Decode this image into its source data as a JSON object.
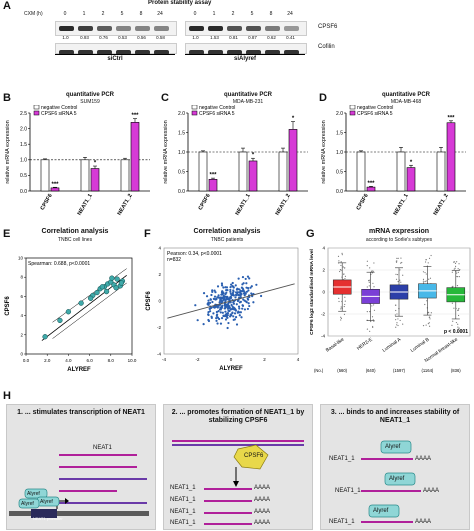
{
  "panelA": {
    "title": "Protein stability assay",
    "chx_label": "CXM (h)",
    "timepoints": [
      "0",
      "1",
      "2",
      "5",
      "8",
      "24",
      "0",
      "1",
      "2",
      "5",
      "8",
      "24"
    ],
    "ratios": [
      "1.0",
      "0.93",
      "0.76",
      "0.53",
      "0.56",
      "0.58",
      "1.0",
      "1.53",
      "0.81",
      "0.87",
      "0.62",
      "0.41"
    ],
    "row1_label": "CPSF6",
    "row2_label": "Cofilin",
    "group1": "siCtrl",
    "group2": "siAlyref"
  },
  "pcr_panels": [
    {
      "letter": "B",
      "title": "quantitative PCR",
      "subtitle": "SUM159"
    },
    {
      "letter": "C",
      "title": "quantitative PCR",
      "subtitle": "MDA-MB-231"
    },
    {
      "letter": "D",
      "title": "quantitative PCR",
      "subtitle": "MDA-MB-468"
    }
  ],
  "pcr_common": {
    "legend": [
      "negative Control",
      "CPSF6 siRNA 5"
    ],
    "ylabel": "relative mRNA expression",
    "yticks": [
      "0.0",
      "0.5",
      "1.0",
      "1.5",
      "2.0",
      "2.5"
    ],
    "categories": [
      "CPSF6",
      "NEAT1_1",
      "NEAT1_2"
    ],
    "colors": {
      "control": "#ffffff",
      "sirna": "#d63ad6"
    }
  },
  "chart_data": [
    {
      "type": "bar",
      "panel": "B",
      "title": "quantitative PCR",
      "subtitle": "SUM159",
      "categories": [
        "CPSF6",
        "NEAT1_1",
        "NEAT1_2"
      ],
      "ylabel": "relative mRNA expression",
      "ylim": [
        0,
        2.5
      ],
      "series": [
        {
          "name": "negative Control",
          "values": [
            1.0,
            1.0,
            1.0
          ],
          "errors": [
            0.03,
            0.08,
            0.05
          ]
        },
        {
          "name": "CPSF6 siRNA 5",
          "values": [
            0.1,
            0.72,
            2.2
          ],
          "errors": [
            0.02,
            0.08,
            0.12
          ]
        }
      ],
      "significance": [
        "***",
        "*",
        "***"
      ]
    },
    {
      "type": "bar",
      "panel": "C",
      "title": "quantitative PCR",
      "subtitle": "MDA-MB-231",
      "categories": [
        "CPSF6",
        "NEAT1_1",
        "NEAT1_2"
      ],
      "ylabel": "relative mRNA expression",
      "ylim": [
        0,
        2.0
      ],
      "series": [
        {
          "name": "negative Control",
          "values": [
            1.0,
            1.0,
            1.0
          ],
          "errors": [
            0.03,
            0.1,
            0.1
          ]
        },
        {
          "name": "CPSF6 siRNA 5",
          "values": [
            0.3,
            0.77,
            1.58
          ],
          "errors": [
            0.03,
            0.07,
            0.2
          ]
        }
      ],
      "significance": [
        "***",
        "*",
        "*"
      ]
    },
    {
      "type": "bar",
      "panel": "D",
      "title": "quantitative PCR",
      "subtitle": "MDA-MB-468",
      "categories": [
        "CPSF6",
        "NEAT1_1",
        "NEAT1_2"
      ],
      "ylabel": "relative mRNA expression",
      "ylim": [
        0,
        2.0
      ],
      "series": [
        {
          "name": "negative Control",
          "values": [
            1.0,
            1.0,
            1.0
          ],
          "errors": [
            0.03,
            0.12,
            0.12
          ]
        },
        {
          "name": "CPSF6 siRNA 5",
          "values": [
            0.1,
            0.6,
            1.75
          ],
          "errors": [
            0.02,
            0.06,
            0.05
          ]
        }
      ],
      "significance": [
        "***",
        "*",
        "***"
      ]
    },
    {
      "type": "scatter",
      "panel": "E",
      "title": "Correlation analysis",
      "subtitle": "TNBC cell lines",
      "xlabel": "ALYREF",
      "ylabel": "CPSF6",
      "xlim": [
        0,
        10
      ],
      "ylim": [
        0,
        10
      ],
      "x": [
        1.8,
        3.2,
        4.0,
        5.2,
        6.3,
        6.7,
        7.0,
        7.4,
        7.7,
        8.0,
        8.3,
        8.6,
        8.9,
        9.1,
        6.1,
        7.2,
        7.6,
        8.1,
        8.5,
        9.0
      ],
      "y": [
        1.8,
        3.5,
        4.4,
        5.3,
        6.1,
        6.4,
        6.8,
        7.0,
        7.3,
        7.5,
        7.2,
        7.8,
        7.1,
        7.6,
        5.8,
        7.0,
        6.5,
        7.9,
        6.9,
        7.4
      ],
      "annotation": "Spearman: 0.688, p<0.0001"
    },
    {
      "type": "scatter",
      "panel": "F",
      "title": "Correlation analysis",
      "subtitle": "TNBC patients",
      "xlabel": "ALYREF",
      "ylabel": "CPSF6",
      "xlim": [
        -4,
        4
      ],
      "ylim": [
        -4,
        4
      ],
      "annotation": [
        "Pearson: 0.34, p<0.0001",
        "n=832"
      ]
    },
    {
      "type": "box",
      "panel": "G",
      "title": "mRNA expression",
      "subtitle": "according to Sorlie's subtypes",
      "ylabel": "CPSF6 log2 standardised mRNA level",
      "ylim": [
        -4,
        4
      ],
      "categories": [
        "Basal-like",
        "HER2-E",
        "Luminal A",
        "Luminal B",
        "Normal breast-like"
      ],
      "counts": [
        "(No.)",
        "(560)",
        "(640)",
        "(1597)",
        "(1164)",
        "(836)"
      ],
      "medians": [
        0.45,
        -0.4,
        0.0,
        0.1,
        -0.25
      ],
      "colors": [
        "#e53030",
        "#7a3fd6",
        "#2c3fa8",
        "#48b8e8",
        "#26b83a"
      ],
      "annotation": "p < 0.0001"
    }
  ],
  "panelE": {
    "title": "Correlation analysis",
    "subtitle": "TNBC cell lines",
    "stat": "Spearman: 0.688, p<0.0001",
    "xlabel": "ALYREF",
    "ylabel": "CPSF6",
    "xticks": [
      "0.0",
      "2.0",
      "4.0",
      "6.0",
      "8.0",
      "10.0"
    ],
    "yticks": [
      "0",
      "2",
      "4",
      "6",
      "8",
      "10"
    ]
  },
  "panelF": {
    "title": "Correlation analysis",
    "subtitle": "TNBC patients",
    "stat": "Pearson: 0.34, p<0.0001",
    "n": "n=832",
    "xlabel": "ALYREF",
    "ylabel": "CPSF6",
    "xticks": [
      "-4",
      "-2",
      "0",
      "2",
      "4"
    ],
    "yticks": [
      "4",
      "2",
      "0",
      "-2",
      "-4"
    ]
  },
  "panelG": {
    "title": "mRNA expression",
    "subtitle": "according to Sorlie's subtypes",
    "ylabel": "CPSF6 log2 standardised mRNA level",
    "pval": "p < 0.0001",
    "yticks": [
      "4",
      "2",
      "0",
      "-2",
      "-4"
    ],
    "categories": [
      "Basal-like",
      "HER2-E",
      "Luminal A",
      "Luminal B",
      "Normal breast-like"
    ],
    "counts": [
      "(No.)",
      "(560)",
      "(640)",
      "(1597)",
      "(1164)",
      "(836)"
    ]
  },
  "panelH": {
    "boxes": [
      {
        "heading": "1. ... stimulates transcription of NEAT1",
        "neat1": "NEAT1",
        "alyref": "Alyref",
        "promoter": "NEAT1 promoter"
      },
      {
        "heading": "2. ... promotes formation of NEAT1_1 by stabilizing CPSF6",
        "cpsf6": "CPSF6",
        "transcript": "NEAT1_1",
        "polya": "AAAA"
      },
      {
        "heading": "3. ... binds to and increases stability of NEAT1_1",
        "alyref": "Alyref",
        "transcript": "NEAT1_1",
        "polya": "AAAA"
      }
    ]
  }
}
